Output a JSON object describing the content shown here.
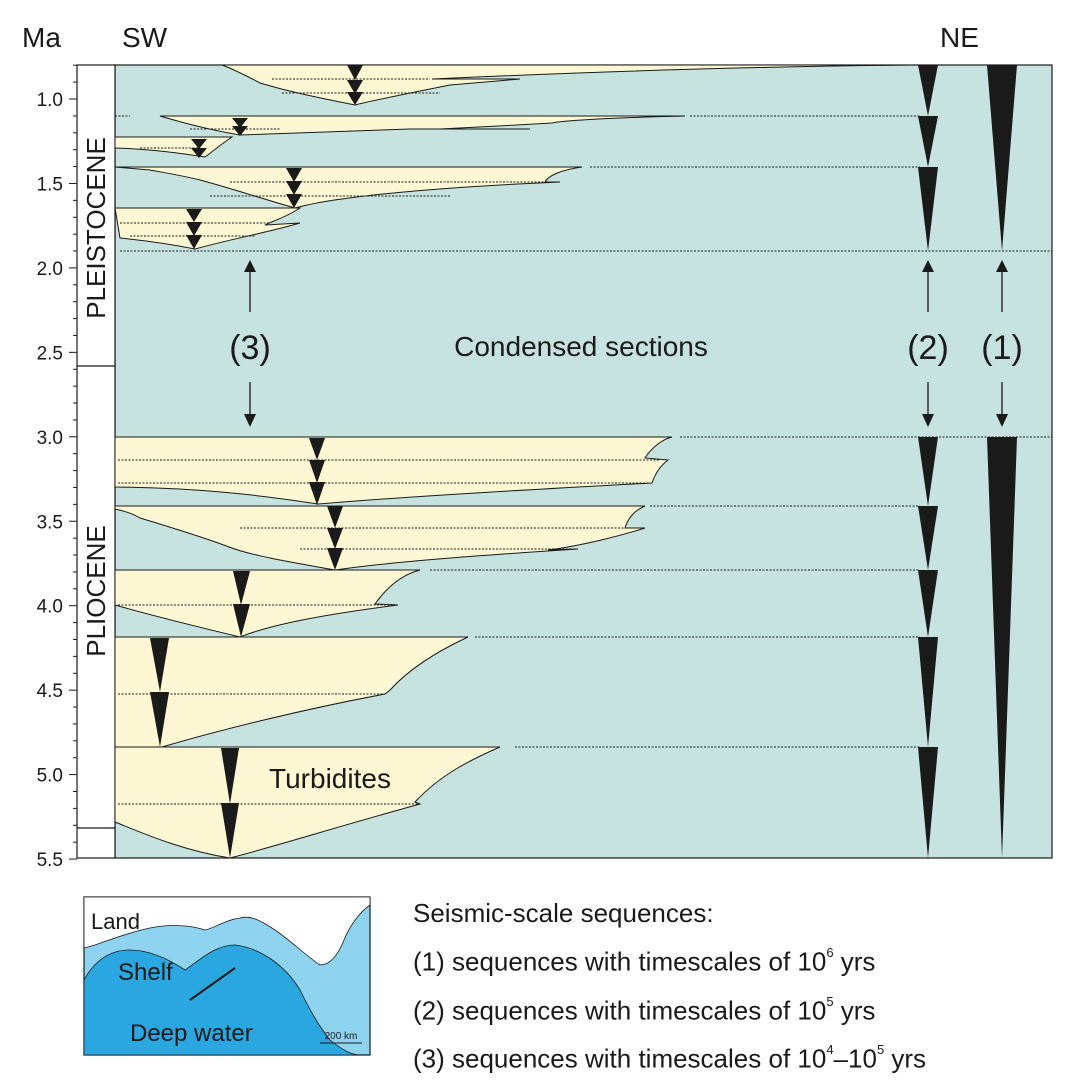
{
  "header": {
    "axis_unit": "Ma",
    "left_direction": "SW",
    "right_direction": "NE"
  },
  "age_ticks": [
    "1.0",
    "1.5",
    "2.0",
    "2.5",
    "3.0",
    "3.5",
    "4.0",
    "4.5",
    "5.0",
    "5.5"
  ],
  "epochs": {
    "upper": "PLEISTOCENE",
    "lower": "PLIOCENE"
  },
  "annotations": {
    "condensed": "Condensed sections",
    "turbidites": "Turbidites",
    "order_3": "(3)",
    "order_2": "(2)",
    "order_1": "(1)"
  },
  "inset_map": {
    "land": "Land",
    "shelf": "Shelf",
    "deep": "Deep water",
    "scale": "200 km"
  },
  "legend": {
    "title": "Seismic-scale sequences:",
    "line1_pre": "(1) sequences with timescales of 10",
    "line1_exp": "6",
    "line1_post": " yrs",
    "line2_pre": "(2) sequences with timescales of 10",
    "line2_exp": "5",
    "line2_post": " yrs",
    "line3_pre": "(3) sequences with timescales of 10",
    "line3_exp1": "4",
    "line3_sep": "–10",
    "line3_exp2": "5",
    "line3_post": " yrs"
  },
  "colors": {
    "basin": "#c6e3df",
    "sand": "#fdf8d3",
    "ink": "#1a1a1a",
    "map_land": "#ffffff",
    "map_shelf": "#8ed3f0",
    "map_deep": "#2aa6e0"
  }
}
